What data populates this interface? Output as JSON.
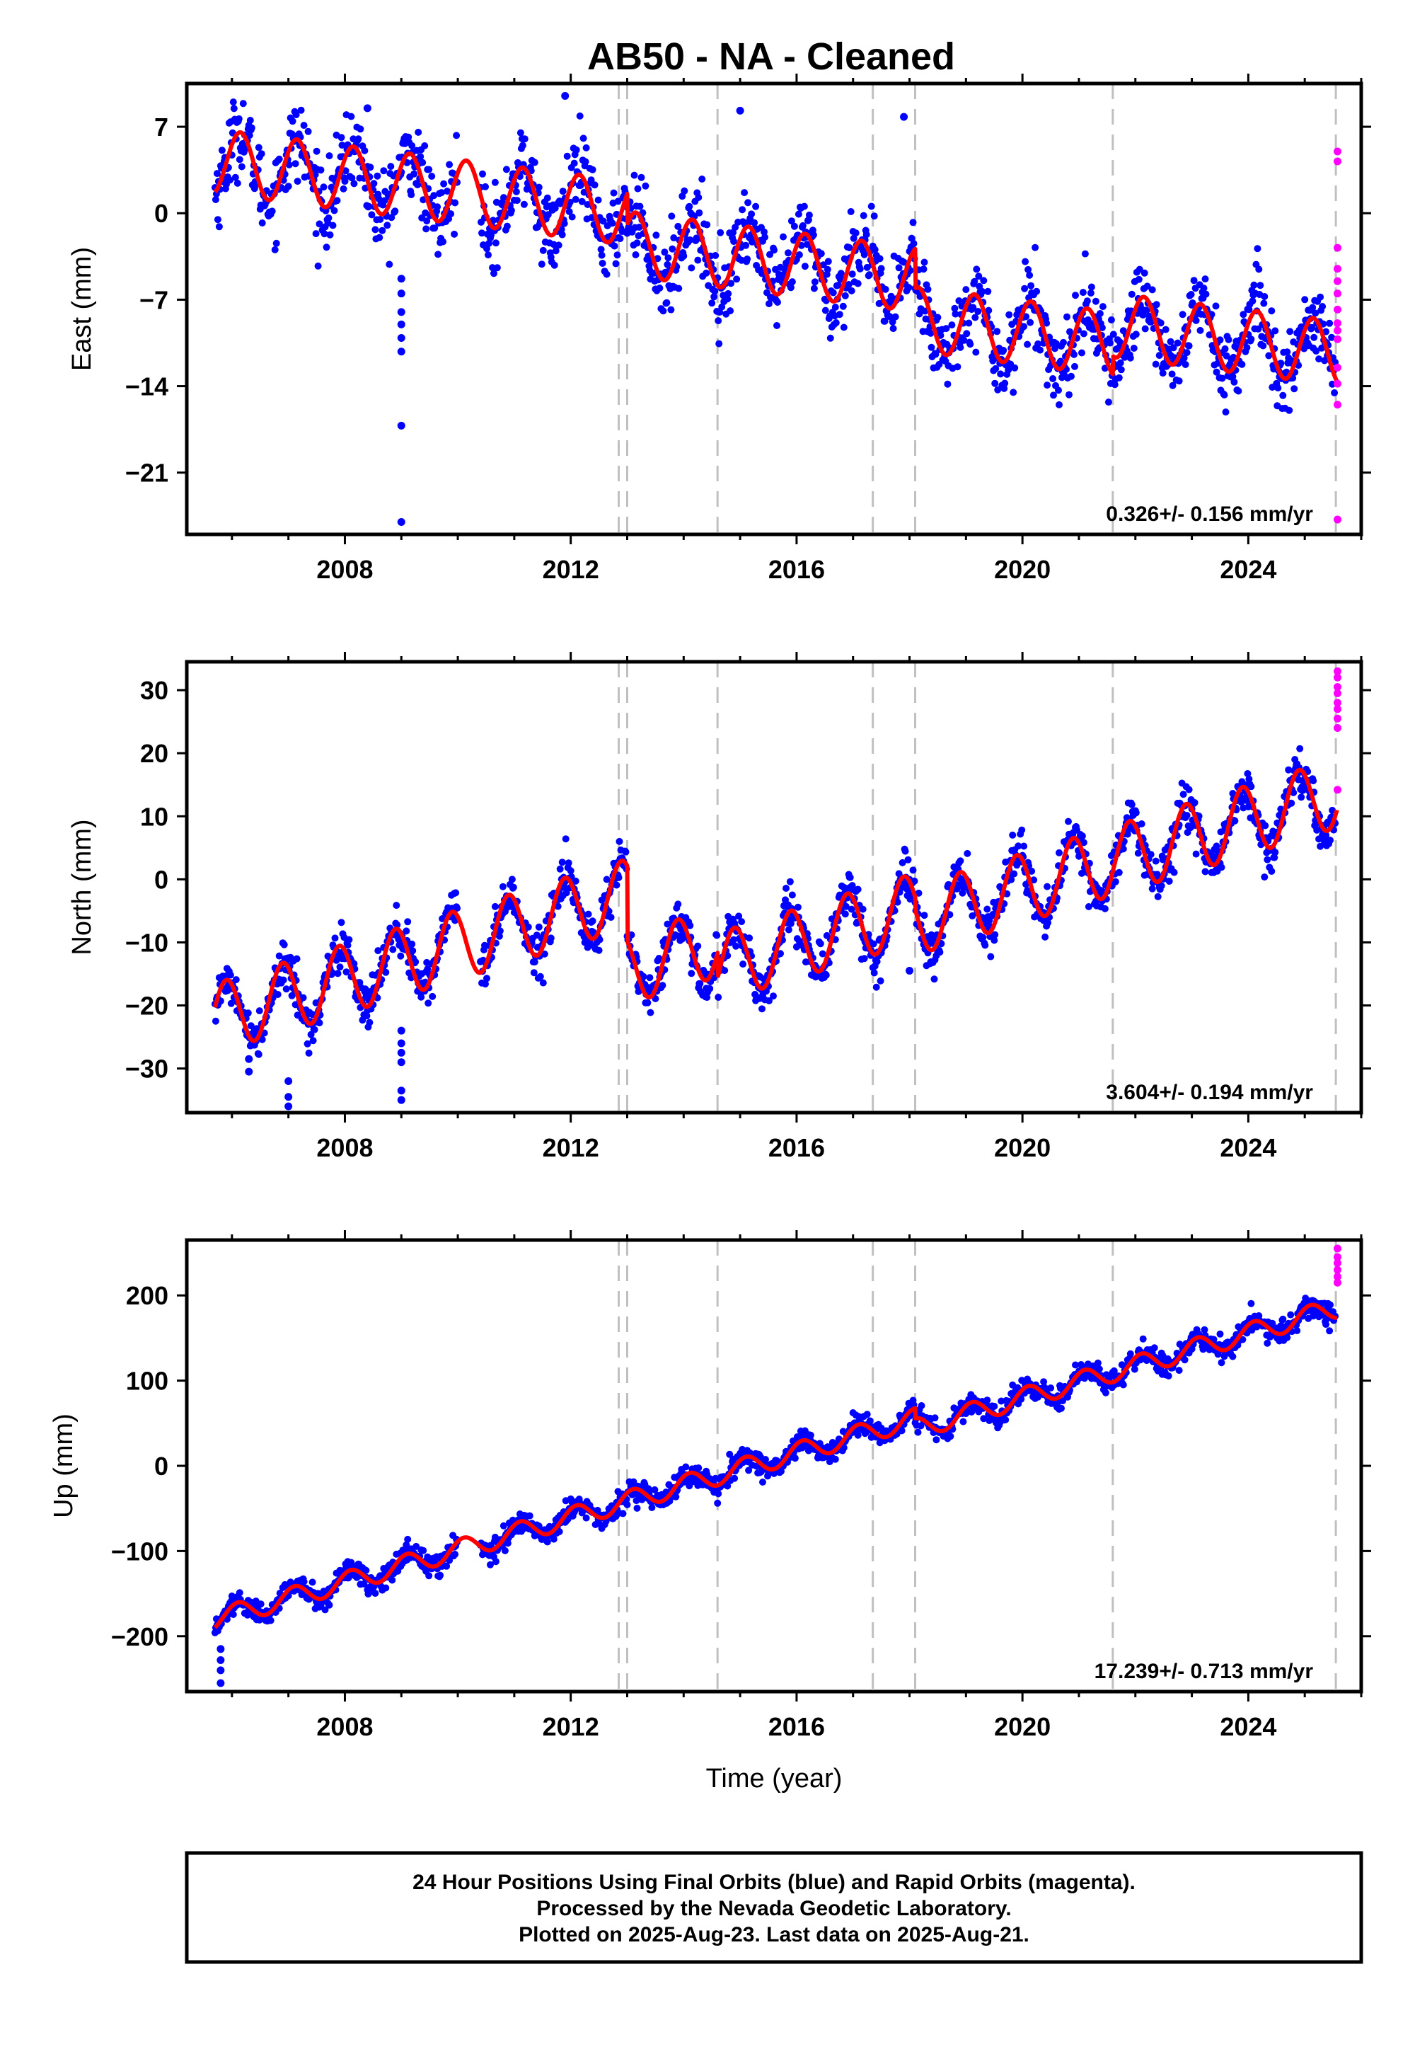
{
  "title": "AB50  - NA - Cleaned",
  "colors": {
    "final_orbits": "#0000ff",
    "rapid_orbits": "#ff00ff",
    "model": "#ff0000",
    "steps": "#c0c0c0",
    "frame": "#000000"
  },
  "footer": {
    "lines": [
      "24 Hour Positions Using Final Orbits (blue) and Rapid Orbits (magenta).",
      "Processed by the Nevada Geodetic Laboratory.",
      "Plotted on 2025-Aug-23. Last data on 2025-Aug-21."
    ]
  },
  "chart_data": [
    {
      "type": "scatter",
      "component": "east",
      "ylabel": "East (mm)",
      "xlabel": "",
      "xlim": [
        2005.2,
        2026.0
      ],
      "ylim": [
        -26,
        10.5
      ],
      "xticks": [
        2008,
        2012,
        2016,
        2020,
        2024
      ],
      "yticks": [
        7,
        0,
        -7,
        -14,
        -21
      ],
      "ytick_labels": [
        "7",
        "0",
        "−7",
        "−14",
        "−21"
      ],
      "rate_label": "0.326+/- 0.156 mm/yr",
      "model": {
        "offset": 4.2,
        "trend": -0.57,
        "amplitude": 2.6,
        "phase_year": 2005.9,
        "t0": 2005.7
      },
      "scatter_noise": 1.6,
      "data_span": [
        2005.7,
        2025.55
      ],
      "gap": [
        2010.0,
        2010.4
      ],
      "step_epochs": [
        2012.85,
        2013.0,
        2014.6,
        2017.35,
        2018.1,
        2021.6,
        2025.55
      ],
      "model_steps": [
        {
          "t": 2013.0,
          "dy": -2.5
        },
        {
          "t": 2018.1,
          "dy": -3.2
        },
        {
          "t": 2021.6,
          "dy": 1.5
        }
      ],
      "outliers": [
        {
          "x": 2009.0,
          "y": -5.3
        },
        {
          "x": 2009.0,
          "y": -6.5
        },
        {
          "x": 2009.0,
          "y": -8.0
        },
        {
          "x": 2009.0,
          "y": -9.0
        },
        {
          "x": 2009.0,
          "y": -10.1
        },
        {
          "x": 2009.0,
          "y": -11.2
        },
        {
          "x": 2009.0,
          "y": -17.2
        },
        {
          "x": 2009.0,
          "y": -25.0
        },
        {
          "x": 2008.4,
          "y": 8.5
        },
        {
          "x": 2017.9,
          "y": 7.8
        },
        {
          "x": 2015.0,
          "y": 8.3
        },
        {
          "x": 2011.9,
          "y": 9.5
        }
      ],
      "rapid_points": [
        {
          "x": 2025.58,
          "y": 5.0
        },
        {
          "x": 2025.58,
          "y": 4.2
        },
        {
          "x": 2025.58,
          "y": -2.8
        },
        {
          "x": 2025.58,
          "y": -4.5
        },
        {
          "x": 2025.58,
          "y": -5.5
        },
        {
          "x": 2025.58,
          "y": -6.5
        },
        {
          "x": 2025.58,
          "y": -7.8
        },
        {
          "x": 2025.58,
          "y": -8.9
        },
        {
          "x": 2025.58,
          "y": -9.5
        },
        {
          "x": 2025.58,
          "y": -10.2
        },
        {
          "x": 2025.58,
          "y": -12.5
        },
        {
          "x": 2025.58,
          "y": -13.8
        },
        {
          "x": 2025.58,
          "y": -15.5
        },
        {
          "x": 2025.58,
          "y": -24.8
        }
      ]
    },
    {
      "type": "scatter",
      "component": "north",
      "ylabel": "North (mm)",
      "xlabel": "",
      "xlim": [
        2005.2,
        2026.0
      ],
      "ylim": [
        -37,
        34.5
      ],
      "xticks": [
        2008,
        2012,
        2016,
        2020,
        2024
      ],
      "yticks": [
        30,
        20,
        10,
        0,
        -10,
        -20,
        -30
      ],
      "ytick_labels": [
        "30",
        "20",
        "10",
        "0",
        "−10",
        "−20",
        "−30"
      ],
      "rate_label": "3.604+/- 0.194 mm/yr",
      "model": {
        "offset": -22.0,
        "trend": 2.7,
        "amplitude": 5.5,
        "phase_year": 2005.65,
        "t0": 2005.7
      },
      "scatter_noise": 1.8,
      "data_span": [
        2005.7,
        2025.55
      ],
      "gap": [
        2010.0,
        2010.4
      ],
      "step_epochs": [
        2012.85,
        2013.0,
        2014.6,
        2017.35,
        2018.1,
        2021.6,
        2025.55
      ],
      "model_steps": [
        {
          "t": 2013.0,
          "dy": -12.0
        },
        {
          "t": 2014.6,
          "dy": -4.0
        },
        {
          "t": 2018.1,
          "dy": -2.0
        }
      ],
      "outliers": [
        {
          "x": 2006.3,
          "y": -28.5
        },
        {
          "x": 2006.3,
          "y": -30.5
        },
        {
          "x": 2007.0,
          "y": -32.0
        },
        {
          "x": 2007.0,
          "y": -34.5
        },
        {
          "x": 2007.0,
          "y": -36.0
        },
        {
          "x": 2009.0,
          "y": -24.0
        },
        {
          "x": 2009.0,
          "y": -26.0
        },
        {
          "x": 2009.0,
          "y": -27.5
        },
        {
          "x": 2009.0,
          "y": -29.0
        },
        {
          "x": 2009.0,
          "y": -33.5
        },
        {
          "x": 2009.0,
          "y": -35.0
        },
        {
          "x": 2018.0,
          "y": -14.5
        }
      ],
      "rapid_points": [
        {
          "x": 2025.58,
          "y": 33.0
        },
        {
          "x": 2025.58,
          "y": 32.0
        },
        {
          "x": 2025.58,
          "y": 30.5
        },
        {
          "x": 2025.58,
          "y": 29.5
        },
        {
          "x": 2025.58,
          "y": 28.0
        },
        {
          "x": 2025.58,
          "y": 27.0
        },
        {
          "x": 2025.58,
          "y": 25.5
        },
        {
          "x": 2025.58,
          "y": 24.0
        },
        {
          "x": 2025.58,
          "y": 14.2
        }
      ]
    },
    {
      "type": "scatter",
      "component": "up",
      "ylabel": "Up (mm)",
      "xlabel": "Time (year)",
      "xlim": [
        2005.2,
        2026.0
      ],
      "ylim": [
        -265,
        265
      ],
      "xticks": [
        2008,
        2012,
        2016,
        2020,
        2024
      ],
      "yticks": [
        200,
        100,
        0,
        -100,
        -200
      ],
      "ytick_labels": [
        "200",
        "100",
        "0",
        "−100",
        "−200"
      ],
      "rate_label": "17.239+/- 0.713 mm/yr",
      "model": {
        "offset": -180.0,
        "trend": 19.0,
        "amplitude": 12.0,
        "phase_year": 2005.85,
        "t0": 2005.7
      },
      "scatter_noise": 6.5,
      "data_span": [
        2005.7,
        2025.55
      ],
      "gap": [
        2010.0,
        2010.4
      ],
      "step_epochs": [
        2012.85,
        2013.0,
        2014.6,
        2017.35,
        2018.1,
        2021.6,
        2025.55
      ],
      "model_steps": [
        {
          "t": 2018.1,
          "dy": -12.0
        }
      ],
      "outliers": [
        {
          "x": 2005.8,
          "y": -215.0
        },
        {
          "x": 2005.8,
          "y": -228.0
        },
        {
          "x": 2005.8,
          "y": -240.0
        },
        {
          "x": 2005.8,
          "y": -255.0
        }
      ],
      "rapid_points": [
        {
          "x": 2025.58,
          "y": 255.0
        },
        {
          "x": 2025.58,
          "y": 245.0
        },
        {
          "x": 2025.58,
          "y": 238.0
        },
        {
          "x": 2025.58,
          "y": 230.0
        },
        {
          "x": 2025.58,
          "y": 222.0
        },
        {
          "x": 2025.58,
          "y": 215.0
        }
      ]
    }
  ]
}
